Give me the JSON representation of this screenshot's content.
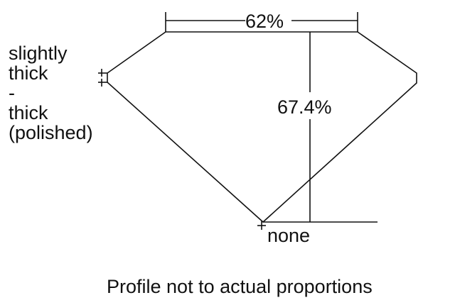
{
  "table_percent": "62%",
  "depth_percent": "67.4%",
  "girdle_label": [
    "slightly",
    "thick",
    "-",
    "thick",
    "(polished)"
  ],
  "culet_label": "none",
  "caption": "Profile not to actual proportions"
}
